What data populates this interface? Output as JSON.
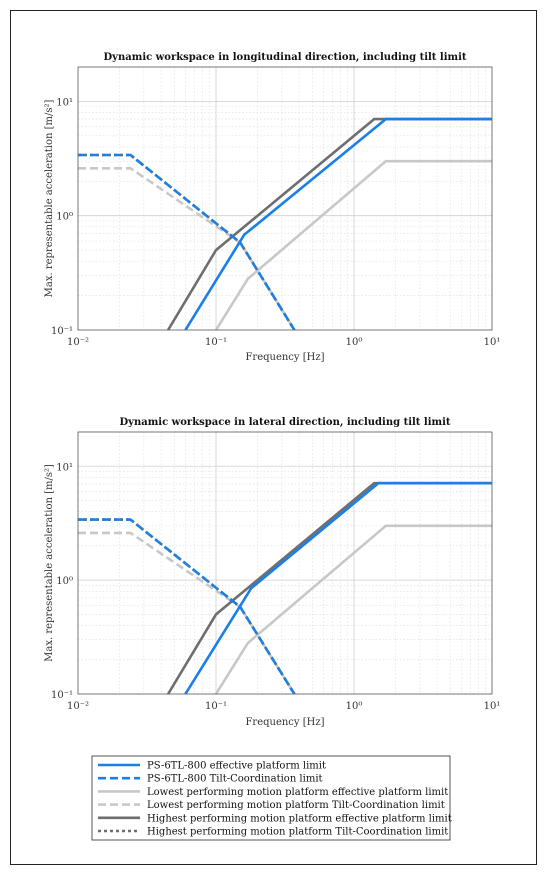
{
  "chart_data": [
    {
      "type": "line",
      "title": "Dynamic workspace in longitudinal direction, including tilt limit",
      "xlabel": "Frequency [Hz]",
      "ylabel": "Max. representable acceleration [m/s²]",
      "xscale": "log",
      "yscale": "log",
      "xlim": [
        0.01,
        10
      ],
      "ylim": [
        0.1,
        20
      ],
      "xticks": [
        "10⁻²",
        "10⁻¹",
        "10⁰",
        "10¹"
      ],
      "yticks": [
        "10⁻¹",
        "10⁰",
        "10¹"
      ],
      "grid": true,
      "series": [
        {
          "name": "PS-6TL-800 effective platform limit",
          "color": "#1a7fe6",
          "dash": "solid",
          "x": [
            0.06,
            0.16,
            1.7,
            10
          ],
          "y": [
            0.1,
            0.68,
            7.0,
            7.0
          ]
        },
        {
          "name": "PS-6TL-800 Tilt-Coordination limit",
          "color": "#1a7fe6",
          "dash": "dashed",
          "x": [
            0.01,
            0.024,
            0.15,
            0.37
          ],
          "y": [
            3.4,
            3.4,
            0.58,
            0.1
          ]
        },
        {
          "name": "Lowest performing motion platform effective platform limit",
          "color": "#c8c8c8",
          "dash": "solid",
          "x": [
            0.1,
            0.17,
            1.7,
            10
          ],
          "y": [
            0.1,
            0.28,
            3.0,
            3.0
          ]
        },
        {
          "name": "Lowest performing motion platform Tilt-Coordination limit",
          "color": "#c8c8c8",
          "dash": "dashed",
          "x": [
            0.01,
            0.024,
            0.15,
            0.37
          ],
          "y": [
            2.6,
            2.6,
            0.58,
            0.1
          ]
        },
        {
          "name": "Highest performing motion platform effective platform limit",
          "color": "#6e6e6e",
          "dash": "solid",
          "x": [
            0.045,
            0.1,
            1.4,
            10
          ],
          "y": [
            0.1,
            0.5,
            7.0,
            7.0
          ]
        },
        {
          "name": "Highest performing motion platform Tilt-Coordination limit",
          "color": "#6e6e6e",
          "dash": "dotted",
          "x": [
            0.01,
            0.024,
            0.15,
            0.37
          ],
          "y": [
            3.4,
            3.4,
            0.58,
            0.1
          ]
        }
      ]
    },
    {
      "type": "line",
      "title": "Dynamic workspace in lateral direction, including tilt limit",
      "xlabel": "Frequency [Hz]",
      "ylabel": "Max. representable acceleration [m/s²]",
      "xscale": "log",
      "yscale": "log",
      "xlim": [
        0.01,
        10
      ],
      "ylim": [
        0.1,
        20
      ],
      "xticks": [
        "10⁻²",
        "10⁻¹",
        "10⁰",
        "10¹"
      ],
      "yticks": [
        "10⁻¹",
        "10⁰",
        "10¹"
      ],
      "grid": true,
      "series": [
        {
          "name": "PS-6TL-800 effective platform limit",
          "color": "#1a7fe6",
          "dash": "solid",
          "x": [
            0.06,
            0.18,
            1.5,
            10
          ],
          "y": [
            0.1,
            0.85,
            7.1,
            7.1
          ]
        },
        {
          "name": "PS-6TL-800 Tilt-Coordination limit",
          "color": "#1a7fe6",
          "dash": "dashed",
          "x": [
            0.01,
            0.024,
            0.15,
            0.37
          ],
          "y": [
            3.4,
            3.4,
            0.58,
            0.1
          ]
        },
        {
          "name": "Lowest performing motion platform effective platform limit",
          "color": "#c8c8c8",
          "dash": "solid",
          "x": [
            0.1,
            0.17,
            1.7,
            10
          ],
          "y": [
            0.1,
            0.28,
            3.0,
            3.0
          ]
        },
        {
          "name": "Lowest performing motion platform Tilt-Coordination limit",
          "color": "#c8c8c8",
          "dash": "dashed",
          "x": [
            0.01,
            0.024,
            0.15,
            0.37
          ],
          "y": [
            2.6,
            2.6,
            0.58,
            0.1
          ]
        },
        {
          "name": "Highest performing motion platform effective platform limit",
          "color": "#6e6e6e",
          "dash": "solid",
          "x": [
            0.045,
            0.1,
            1.4,
            10
          ],
          "y": [
            0.1,
            0.5,
            7.1,
            7.1
          ]
        },
        {
          "name": "Highest performing motion platform Tilt-Coordination limit",
          "color": "#6e6e6e",
          "dash": "dotted",
          "x": [
            0.01,
            0.024,
            0.15,
            0.37
          ],
          "y": [
            3.4,
            3.4,
            0.58,
            0.1
          ]
        }
      ]
    }
  ],
  "legend": {
    "placement": "bottom",
    "entries": [
      {
        "label": "PS-6TL-800 effective platform limit",
        "color": "#1a7fe6",
        "dash": "solid"
      },
      {
        "label": "PS-6TL-800 Tilt-Coordination limit",
        "color": "#1a7fe6",
        "dash": "dashed"
      },
      {
        "label": "Lowest performing motion platform effective platform limit",
        "color": "#c8c8c8",
        "dash": "solid"
      },
      {
        "label": "Lowest performing motion platform Tilt-Coordination limit",
        "color": "#c8c8c8",
        "dash": "dashed"
      },
      {
        "label": "Highest performing motion platform effective platform limit",
        "color": "#6e6e6e",
        "dash": "solid"
      },
      {
        "label": "Highest performing motion platform Tilt-Coordination limit",
        "color": "#6e6e6e",
        "dash": "dotted"
      }
    ]
  }
}
